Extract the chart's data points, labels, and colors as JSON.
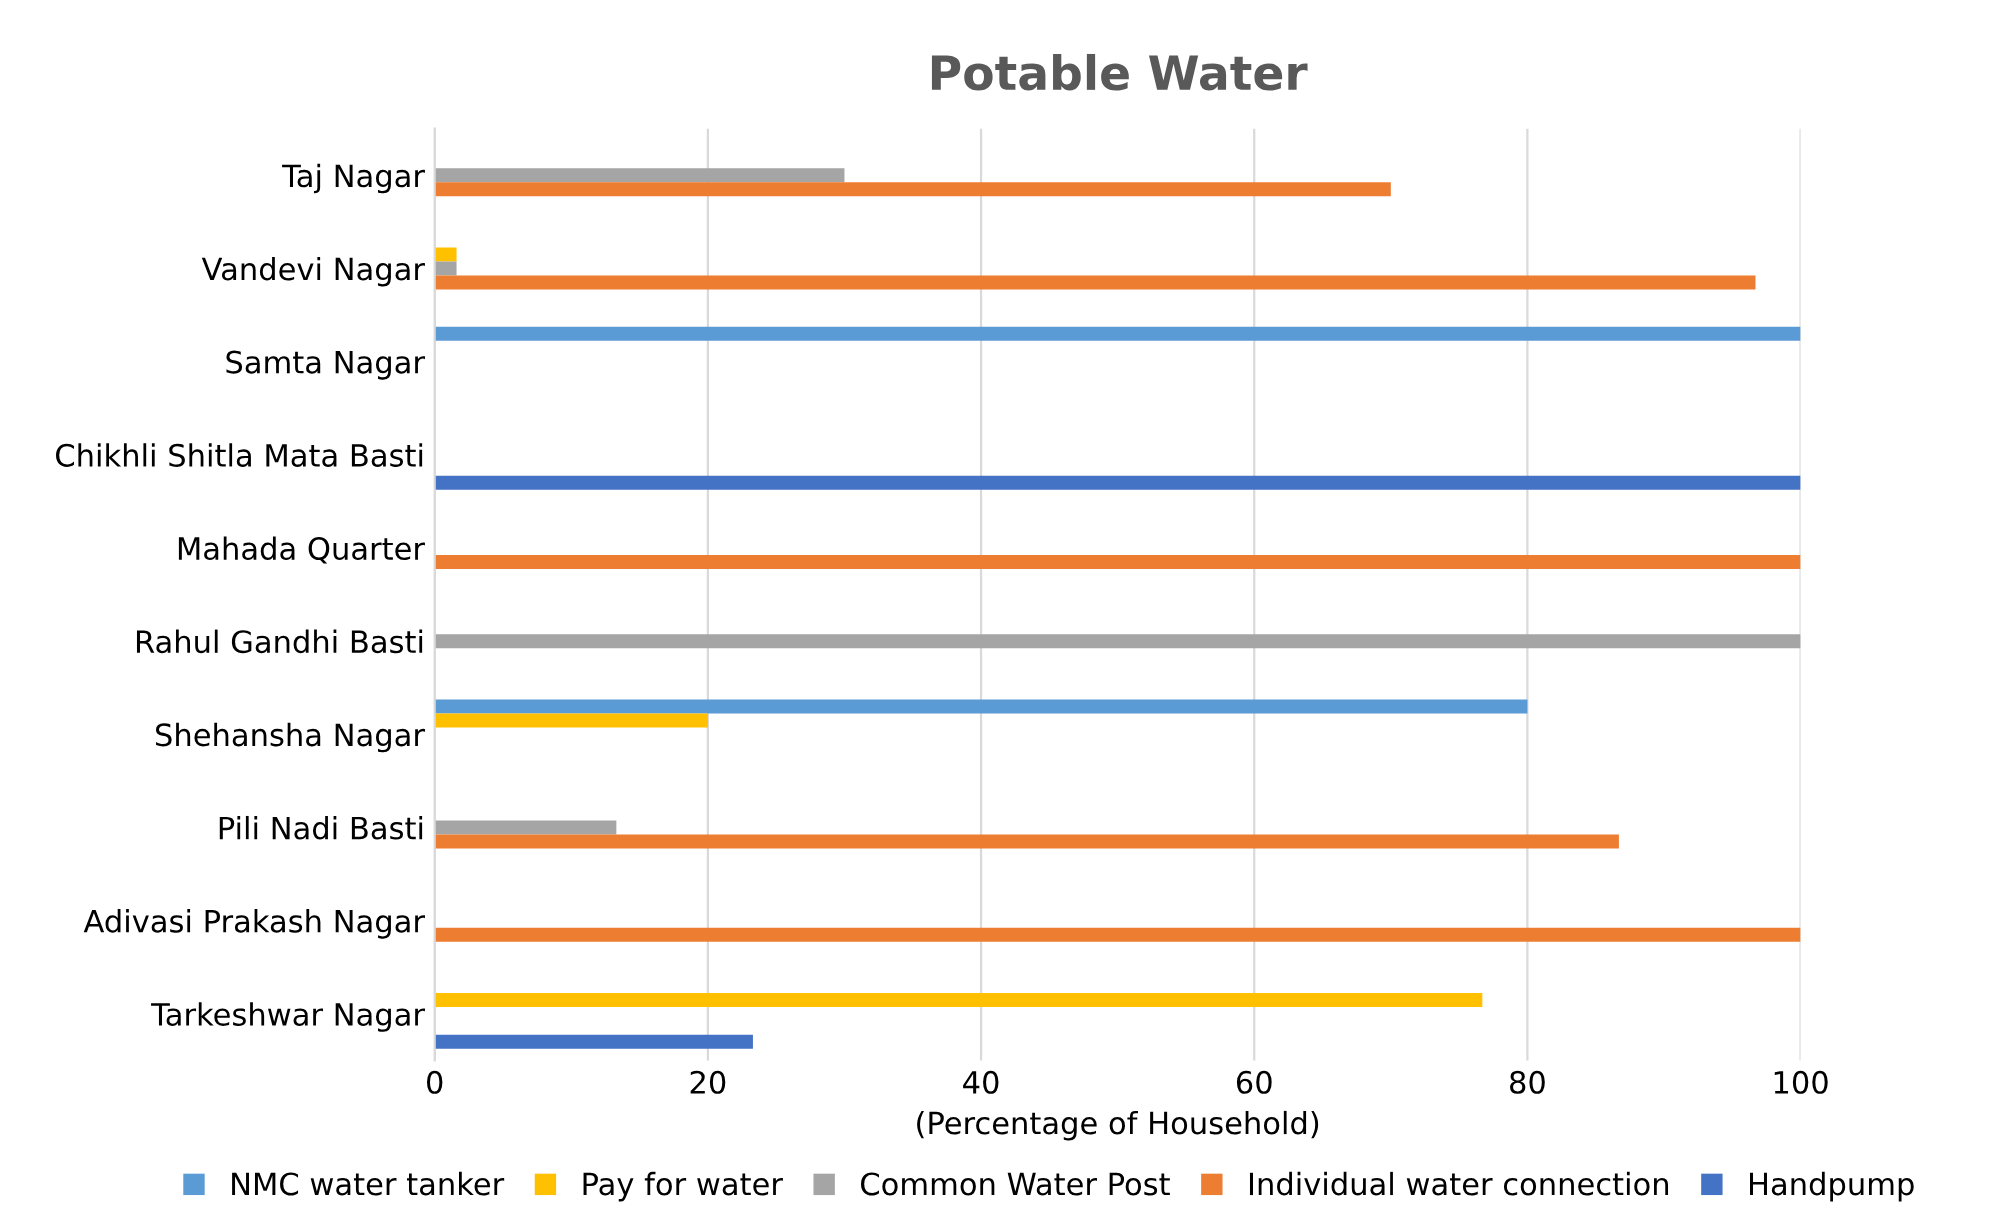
{
  "chart_data": {
    "type": "bar",
    "orientation": "horizontal",
    "title": "Potable Water",
    "xlabel": "(Percentage of Household)",
    "categories": [
      "Taj Nagar",
      "Vandevi Nagar",
      "Samta Nagar",
      "Chikhli Shitla Mata Basti",
      "Mahada Quarter",
      "Rahul Gandhi Basti",
      "Shehansha Nagar",
      "Pili Nadi Basti",
      "Adivasi Prakash Nagar",
      "Tarkeshwar Nagar"
    ],
    "series": [
      {
        "name": "NMC water tanker",
        "color": "#5b9bd5",
        "values": [
          0,
          0,
          100,
          0,
          0,
          0,
          80,
          0,
          0,
          0
        ]
      },
      {
        "name": "Pay for water",
        "color": "#ffc000",
        "values": [
          0,
          1.6,
          0,
          0,
          0,
          0,
          20,
          0,
          0,
          76.7
        ]
      },
      {
        "name": "Common Water Post",
        "color": "#a5a5a5",
        "values": [
          30,
          1.6,
          0,
          0,
          0,
          100,
          0,
          13.3,
          0,
          0
        ]
      },
      {
        "name": "Individual water connection",
        "color": "#ed7d31",
        "values": [
          70,
          96.7,
          0,
          0,
          100,
          0,
          0,
          86.7,
          100,
          0
        ]
      },
      {
        "name": "Handpump",
        "color": "#4472c4",
        "values": [
          0,
          0,
          0,
          100,
          0,
          0,
          0,
          0,
          0,
          23.3
        ]
      }
    ],
    "xlim": [
      0,
      100
    ],
    "xticks": [
      0,
      20,
      40,
      60,
      80,
      100
    ],
    "grid": "x",
    "legend": "bottom"
  }
}
